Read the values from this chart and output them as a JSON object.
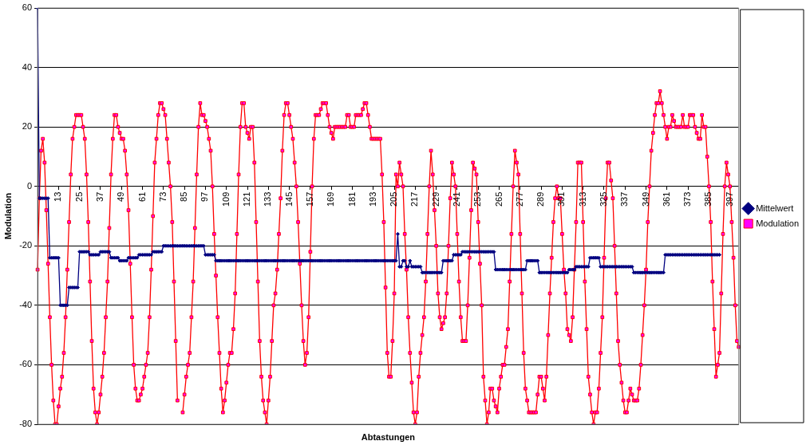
{
  "chart_data": {
    "type": "line",
    "xlabel": "Abtastungen",
    "ylabel": "Modulation",
    "categories": [
      null,
      null,
      null,
      null,
      null,
      null,
      null,
      null,
      null,
      null,
      null,
      null,
      "13",
      null,
      null,
      null,
      null,
      null,
      null,
      null,
      null,
      null,
      null,
      null,
      "25",
      null,
      null,
      null,
      null,
      null,
      null,
      null,
      null,
      null,
      null,
      null,
      "37",
      null,
      null,
      null,
      null,
      null,
      null,
      null,
      null,
      null,
      null,
      null,
      "49",
      null,
      null,
      null,
      null,
      null,
      null,
      null,
      null,
      null,
      null,
      null,
      "61",
      null,
      null,
      null,
      null,
      null,
      null,
      null,
      null,
      null,
      null,
      null,
      "73",
      null,
      null,
      null,
      null,
      null,
      null,
      null,
      null,
      null,
      null,
      null,
      "85",
      null,
      null,
      null,
      null,
      null,
      null,
      null,
      null,
      null,
      null,
      null,
      "97",
      null,
      null,
      null,
      null,
      null,
      null,
      null,
      null,
      null,
      null,
      null,
      "109",
      null,
      null,
      null,
      null,
      null,
      null,
      null,
      null,
      null,
      null,
      null,
      "121",
      null,
      null,
      null,
      null,
      null,
      null,
      null,
      null,
      null,
      null,
      null,
      "133",
      null,
      null,
      null,
      null,
      null,
      null,
      null,
      null,
      null,
      null,
      null,
      "145",
      null,
      null,
      null,
      null,
      null,
      null,
      null,
      null,
      null,
      null,
      null,
      "157",
      null,
      null,
      null,
      null,
      null,
      null,
      null,
      null,
      null,
      null,
      null,
      "169",
      null,
      null,
      null,
      null,
      null,
      null,
      null,
      null,
      null,
      null,
      null,
      "181",
      null,
      null,
      null,
      null,
      null,
      null,
      null,
      null,
      null,
      null,
      null,
      "193",
      null,
      null,
      null,
      null,
      null,
      null,
      null,
      null,
      null,
      null,
      null,
      "205",
      null,
      null,
      null,
      null,
      null,
      null,
      null,
      null,
      null,
      null,
      null,
      "217",
      null,
      null,
      null,
      null,
      null,
      null,
      null,
      null,
      null,
      null,
      null,
      "229",
      null,
      null,
      null,
      null,
      null,
      null,
      null,
      null,
      null,
      null,
      null,
      "241",
      null,
      null,
      null,
      null,
      null,
      null,
      null,
      null,
      null,
      null,
      null,
      "253",
      null,
      null,
      null,
      null,
      null,
      null,
      null,
      null,
      null,
      null,
      null,
      "265",
      null,
      null,
      null,
      null,
      null,
      null,
      null,
      null,
      null,
      null,
      null,
      "277",
      null,
      null,
      null,
      null,
      null,
      null,
      null,
      null,
      null,
      null,
      null,
      "289",
      null,
      null,
      null,
      null,
      null,
      null,
      null,
      null,
      null,
      null,
      null,
      "301",
      null,
      null,
      null,
      null,
      null,
      null,
      null,
      null,
      null,
      null,
      null,
      "313",
      null,
      null,
      null,
      null,
      null,
      null,
      null,
      null,
      null,
      null,
      null,
      "325",
      null,
      null,
      null,
      null,
      null,
      null,
      null,
      null,
      null,
      null,
      null,
      "337",
      null,
      null,
      null,
      null,
      null,
      null,
      null,
      null,
      null,
      null,
      null,
      "349",
      null,
      null,
      null,
      null,
      null,
      null,
      null,
      null,
      null,
      null,
      null,
      "361",
      null,
      null,
      null,
      null,
      null,
      null,
      null,
      null,
      null,
      null,
      null,
      "373",
      null,
      null,
      null,
      null,
      null,
      null,
      null,
      null,
      null,
      null,
      null,
      "385",
      null,
      null,
      null,
      null,
      null,
      null,
      null,
      null,
      null,
      null,
      null,
      "397",
      null,
      null,
      null,
      null,
      null
    ],
    "series": [
      {
        "name": "Mittelwert",
        "color": "#000080",
        "marker": "diamond",
        "values": [
          60,
          -4,
          -4,
          -4,
          -4,
          -4,
          -4,
          -24,
          -24,
          -24,
          -24,
          -24,
          -24,
          -40,
          -40,
          -40,
          -40,
          -40,
          -34,
          -34,
          -34,
          -34,
          -34,
          -34,
          -22,
          -22,
          -22,
          -22,
          -22,
          -22,
          -23,
          -23,
          -23,
          -23,
          -23,
          -23,
          -22,
          -22,
          -22,
          -22,
          -22,
          -22,
          -24,
          -24,
          -24,
          -24,
          -24,
          -25,
          -25,
          -25,
          -25,
          -25,
          -24,
          -24,
          -24,
          -24,
          -24,
          -24,
          -23,
          -23,
          -23,
          -23,
          -23,
          -23,
          -23,
          -23,
          -22,
          -22,
          -22,
          -22,
          -22,
          -22,
          -20,
          -20,
          -20,
          -20,
          -20,
          -20,
          -20,
          -20,
          -20,
          -20,
          -20,
          -20,
          -20,
          -20,
          -20,
          -20,
          -20,
          -20,
          -20,
          -20,
          -20,
          -20,
          -20,
          -20,
          -23,
          -23,
          -23,
          -23,
          -23,
          -23,
          -25,
          -25,
          -25,
          -25,
          -25,
          -25,
          -25,
          -25,
          -25,
          -25,
          -25,
          -25,
          -25,
          -25,
          -25,
          -25,
          -25,
          -25,
          -25,
          -25,
          -25,
          -25,
          -25,
          -25,
          -25,
          -25,
          -25,
          -25,
          -25,
          -25,
          -25,
          -25,
          -25,
          -25,
          -25,
          -25,
          -25,
          -25,
          -25,
          -25,
          -25,
          -25,
          -25,
          -25,
          -25,
          -25,
          -25,
          -25,
          -25,
          -25,
          -25,
          -25,
          -25,
          -25,
          -25,
          -25,
          -25,
          -25,
          -25,
          -25,
          -25,
          -25,
          -25,
          -25,
          -25,
          -25,
          -25,
          -25,
          -25,
          -25,
          -25,
          -25,
          -25,
          -25,
          -25,
          -25,
          -25,
          -25,
          -25,
          -25,
          -25,
          -25,
          -25,
          -25,
          -25,
          -25,
          -25,
          -25,
          -25,
          -25,
          -25,
          -25,
          -25,
          -25,
          -25,
          -25,
          -25,
          -25,
          -25,
          -25,
          -25,
          -25,
          -25,
          -25,
          -16,
          -27,
          -27,
          -25,
          -25,
          -27,
          -27,
          -25,
          -27,
          -27,
          -27,
          -27,
          -27,
          -27,
          -29,
          -29,
          -29,
          -29,
          -29,
          -29,
          -29,
          -29,
          -29,
          -29,
          -29,
          -29,
          -25,
          -25,
          -25,
          -25,
          -25,
          -25,
          -23,
          -23,
          -23,
          -23,
          -23,
          -22,
          -22,
          -22,
          -22,
          -22,
          -22,
          -22,
          -22,
          -22,
          -22,
          -22,
          -22,
          -22,
          -22,
          -22,
          -22,
          -22,
          -22,
          -22,
          -28,
          -28,
          -28,
          -28,
          -28,
          -28,
          -28,
          -28,
          -28,
          -28,
          -28,
          -28,
          -28,
          -28,
          -28,
          -28,
          -28,
          -28,
          -25,
          -25,
          -25,
          -25,
          -25,
          -25,
          -25,
          -29,
          -29,
          -29,
          -29,
          -29,
          -29,
          -29,
          -29,
          -29,
          -29,
          -29,
          -29,
          -29,
          -29,
          -29,
          -29,
          -29,
          -28,
          -28,
          -28,
          -28,
          -27,
          -27,
          -27,
          -27,
          -27,
          -27,
          -27,
          -27,
          -24,
          -24,
          -24,
          -24,
          -24,
          -24,
          -27,
          -27,
          -27,
          -27,
          -27,
          -27,
          -27,
          -27,
          -27,
          -27,
          -27,
          -27,
          -27,
          -27,
          -27,
          -27,
          -27,
          -27,
          -27,
          -29,
          -29,
          -29,
          -29,
          -29,
          -29,
          -29,
          -29,
          -29,
          -29,
          -29,
          -29,
          -29,
          -29,
          -29,
          -29,
          -29,
          -29,
          -23,
          -23,
          -23,
          -23,
          -23,
          -23,
          -23,
          -23,
          -23,
          -23,
          -23,
          -23,
          -23,
          -23,
          -23,
          -23,
          -23,
          -23,
          -23,
          -23,
          -23,
          -23,
          -23,
          -23,
          -23,
          -23,
          -23,
          -23,
          -23,
          -23,
          -23,
          -23,
          null,
          null,
          null,
          null,
          null,
          null,
          null,
          null,
          null,
          null,
          null
        ]
      },
      {
        "name": "Modulation",
        "color": "#ff0000",
        "marker": "square",
        "values": [
          -28,
          -4,
          12,
          16,
          8,
          -8,
          -26,
          -44,
          -60,
          -72,
          -80,
          -80,
          -74,
          -68,
          -64,
          -56,
          -44,
          -28,
          -12,
          4,
          16,
          20,
          24,
          24,
          24,
          24,
          20,
          16,
          4,
          -12,
          -32,
          -52,
          -68,
          -76,
          -80,
          -76,
          -70,
          -64,
          -56,
          -44,
          -32,
          -14,
          4,
          16,
          24,
          24,
          20,
          18,
          16,
          16,
          12,
          4,
          -8,
          -26,
          -44,
          -60,
          -68,
          -72,
          -72,
          -70,
          -68,
          -64,
          -60,
          -56,
          -44,
          -28,
          -10,
          8,
          16,
          24,
          28,
          28,
          26,
          24,
          16,
          8,
          0,
          -12,
          -32,
          -52,
          -72,
          null,
          null,
          -76,
          -70,
          -64,
          -60,
          -56,
          -44,
          -32,
          -14,
          4,
          20,
          28,
          24,
          24,
          22,
          20,
          16,
          12,
          0,
          -16,
          -30,
          -44,
          -56,
          -68,
          -76,
          -72,
          -66,
          -60,
          -56,
          -56,
          -48,
          -36,
          -16,
          4,
          20,
          28,
          28,
          20,
          18,
          16,
          20,
          20,
          8,
          -12,
          -32,
          -52,
          -64,
          -72,
          -76,
          -80,
          -72,
          -64,
          -52,
          -40,
          -36,
          -28,
          -16,
          -4,
          12,
          24,
          28,
          28,
          24,
          20,
          16,
          8,
          0,
          -12,
          -26,
          -40,
          -52,
          -60,
          -56,
          -44,
          -22,
          0,
          16,
          24,
          24,
          24,
          26,
          28,
          28,
          28,
          24,
          20,
          18,
          16,
          20,
          20,
          20,
          20,
          20,
          20,
          20,
          24,
          24,
          20,
          20,
          20,
          24,
          24,
          24,
          24,
          26,
          28,
          28,
          24,
          20,
          16,
          16,
          16,
          16,
          16,
          16,
          4,
          -12,
          -34,
          -56,
          -64,
          -64,
          -52,
          -36,
          4,
          0,
          8,
          4,
          0,
          -16,
          -28,
          -44,
          -56,
          -66,
          -76,
          -80,
          -76,
          -64,
          -56,
          -50,
          -44,
          -32,
          -16,
          0,
          12,
          4,
          -8,
          -20,
          -36,
          -44,
          -48,
          -46,
          -44,
          -36,
          -20,
          -4,
          8,
          4,
          0,
          -16,
          -32,
          -44,
          -52,
          -52,
          -52,
          -40,
          -24,
          -8,
          8,
          6,
          4,
          -12,
          -26,
          -40,
          -64,
          -72,
          -80,
          -76,
          -68,
          -68,
          -72,
          -74,
          -76,
          -68,
          -64,
          -60,
          -60,
          -54,
          -48,
          -32,
          -16,
          0,
          12,
          8,
          4,
          -16,
          -36,
          -56,
          -68,
          -72,
          -76,
          -76,
          -76,
          -76,
          -76,
          -70,
          -64,
          -64,
          -68,
          -72,
          -64,
          -50,
          -36,
          -24,
          -12,
          -4,
          0,
          -4,
          -4,
          -16,
          -28,
          -36,
          -48,
          -50,
          -52,
          -44,
          -28,
          -12,
          8,
          8,
          8,
          -12,
          -32,
          -48,
          -64,
          -70,
          -76,
          -80,
          -76,
          -76,
          -68,
          -56,
          -44,
          -24,
          -4,
          8,
          8,
          2,
          -4,
          -20,
          -36,
          -52,
          -60,
          -66,
          -72,
          -76,
          -76,
          -72,
          -68,
          -70,
          -72,
          -72,
          -72,
          -68,
          -60,
          -50,
          -40,
          -28,
          -12,
          0,
          12,
          18,
          24,
          28,
          28,
          32,
          28,
          24,
          20,
          16,
          20,
          20,
          24,
          22,
          20,
          20,
          20,
          20,
          24,
          20,
          20,
          20,
          24,
          24,
          24,
          20,
          18,
          16,
          16,
          24,
          20,
          20,
          10,
          0,
          -12,
          -32,
          -48,
          -64,
          -60,
          -56,
          -36,
          -16,
          0,
          8,
          4,
          0,
          -12,
          -24,
          -40,
          -52,
          -54
        ]
      }
    ],
    "ylim": [
      -80,
      60
    ],
    "yticks": [
      -80,
      -60,
      -40,
      -20,
      0,
      20,
      40,
      60
    ],
    "grid": "y",
    "legend": "right"
  }
}
